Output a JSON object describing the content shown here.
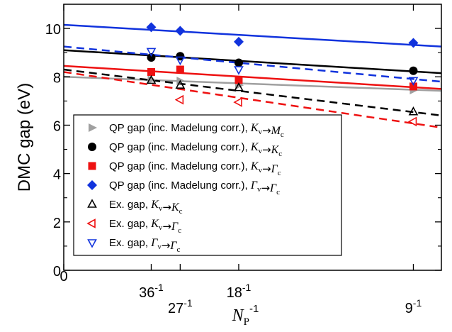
{
  "chart_data": {
    "type": "scatter",
    "xlabel": "N_P^-1",
    "ylabel": "DMC gap (eV)",
    "xlim": [
      0,
      0.12
    ],
    "ylim": [
      0,
      11
    ],
    "x_ticks": [
      {
        "value": 0.0,
        "label": "0"
      },
      {
        "value": 0.0278,
        "label": "36⁻¹"
      },
      {
        "value": 0.037,
        "label": "27⁻¹"
      },
      {
        "value": 0.0556,
        "label": "18⁻¹"
      },
      {
        "value": 0.1111,
        "label": "9⁻¹"
      }
    ],
    "y_ticks": [
      0,
      2,
      4,
      6,
      8,
      10
    ],
    "grid": false,
    "legend_position": "lower-left",
    "series": [
      {
        "name": "QP gap (inc. Madelung corr.), K_v→M_c",
        "color": "#a0a0a0",
        "marker": "triangle-right-filled",
        "line": "solid",
        "x": [
          0.0278,
          0.037,
          0.0556,
          0.1111
        ],
        "y": [
          7.88,
          7.83,
          7.65,
          7.45
        ],
        "fit": [
          8.0,
          7.42
        ]
      },
      {
        "name": "QP gap (inc. Madelung corr.), K_v→K_c",
        "color": "#000000",
        "marker": "circle-filled",
        "line": "solid",
        "x": [
          0.0278,
          0.037,
          0.0556,
          0.1111
        ],
        "y": [
          8.8,
          8.85,
          8.58,
          8.25
        ],
        "fit": [
          9.1,
          8.15
        ]
      },
      {
        "name": "QP gap (inc. Madelung corr.), K_v→Γ_c",
        "color": "#ee1111",
        "marker": "square-filled",
        "line": "solid",
        "x": [
          0.0278,
          0.037,
          0.0556,
          0.1111
        ],
        "y": [
          8.2,
          8.3,
          7.87,
          7.6
        ],
        "fit": [
          8.45,
          7.5
        ]
      },
      {
        "name": "QP gap (inc. Madelung corr.), Γ_v→Γ_c",
        "color": "#1133dd",
        "marker": "diamond-filled",
        "line": "solid",
        "x": [
          0.0278,
          0.037,
          0.0556,
          0.1111
        ],
        "y": [
          10.05,
          9.9,
          9.45,
          9.4
        ],
        "fit": [
          10.15,
          9.25
        ]
      },
      {
        "name": "Ex. gap, K_v→K_c",
        "color": "#000000",
        "marker": "triangle-up-open",
        "line": "dashed",
        "x": [
          0.0278,
          0.037,
          0.0556,
          0.1111
        ],
        "y": [
          7.85,
          7.65,
          7.55,
          6.55
        ],
        "fit": [
          8.3,
          6.4
        ]
      },
      {
        "name": "Ex. gap, K_v→Γ_c",
        "color": "#ee1111",
        "marker": "triangle-left-open",
        "line": "dashed",
        "x": [
          0.037,
          0.0556,
          0.1111
        ],
        "y": [
          7.05,
          6.95,
          6.15
        ],
        "fit": [
          8.2,
          5.9
        ]
      },
      {
        "name": "Ex. gap, Γ_v→Γ_c",
        "color": "#1133dd",
        "marker": "triangle-down-open",
        "line": "dashed",
        "x": [
          0.0278,
          0.037,
          0.0556,
          0.1111
        ],
        "y": [
          9.05,
          8.7,
          8.3,
          7.85
        ],
        "fit": [
          9.25,
          7.8
        ]
      }
    ]
  }
}
